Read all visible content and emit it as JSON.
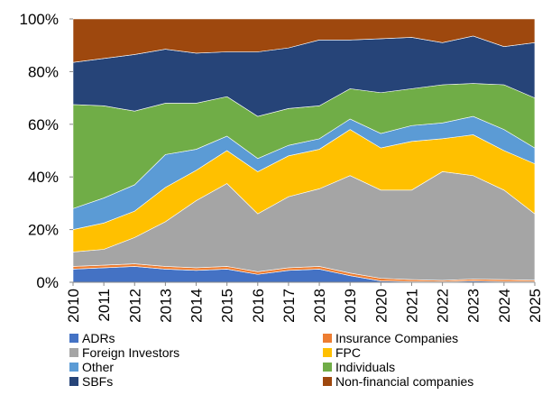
{
  "chart_data": {
    "type": "stacked_area",
    "categories": [
      "2010",
      "2011",
      "2012",
      "2013",
      "2014",
      "2015",
      "2016",
      "2017",
      "2018",
      "2019",
      "2020",
      "2021",
      "2022",
      "2023",
      "2024",
      "2025"
    ],
    "series": [
      {
        "name": "ADRs",
        "color": "#4472c4",
        "values": [
          5,
          5.5,
          6,
          5,
          4.5,
          5,
          3,
          4.5,
          5,
          2.5,
          0.5,
          0.3,
          0.2,
          0.5,
          0.3,
          0.3
        ]
      },
      {
        "name": "Insurance Companies",
        "color": "#ed7d31",
        "values": [
          1,
          1,
          1,
          1,
          1,
          1,
          1,
          1,
          1,
          1,
          1,
          0.7,
          0.5,
          0.7,
          0.7,
          0.5
        ]
      },
      {
        "name": "Foreign Investors",
        "color": "#a5a5a5",
        "values": [
          5.5,
          6,
          10,
          17,
          25.5,
          31.5,
          22,
          27,
          29.5,
          37,
          33.5,
          34,
          41.3,
          39.3,
          34,
          25.2
        ]
      },
      {
        "name": "FPC",
        "color": "#ffc000",
        "values": [
          8.5,
          10,
          10,
          13,
          11.5,
          12.5,
          16,
          15.5,
          15,
          17.5,
          16,
          18.5,
          12.5,
          15.5,
          15,
          19
        ]
      },
      {
        "name": "Other",
        "color": "#5b9bd5",
        "values": [
          8,
          9.5,
          10,
          12.5,
          8,
          5.5,
          5,
          4,
          4,
          4,
          5.5,
          6,
          6,
          7,
          8,
          6
        ]
      },
      {
        "name": "Individuals",
        "color": "#70ad47",
        "values": [
          39.5,
          35,
          28,
          19.5,
          17.5,
          15,
          16,
          14,
          12.5,
          11.5,
          15.5,
          14,
          14.5,
          12.5,
          17,
          19
        ]
      },
      {
        "name": "SBFs",
        "color": "#264478",
        "values": [
          16,
          18,
          21.5,
          20.5,
          19,
          17,
          24.5,
          23,
          25,
          18.5,
          20.5,
          19.5,
          16,
          18,
          14.5,
          21
        ]
      },
      {
        "name": "Non-financial companies",
        "color": "#9e480e",
        "values": [
          16.5,
          15,
          13.5,
          11.5,
          13,
          12.5,
          12.5,
          11,
          8,
          8,
          7.5,
          7,
          9,
          6.5,
          10.5,
          9
        ]
      }
    ],
    "ylim": [
      0,
      100
    ],
    "yticks": [
      {
        "value": 0,
        "label": "0%"
      },
      {
        "value": 20,
        "label": "20%"
      },
      {
        "value": 40,
        "label": "40%"
      },
      {
        "value": 60,
        "label": "60%"
      },
      {
        "value": 80,
        "label": "80%"
      },
      {
        "value": 100,
        "label": "100%"
      }
    ]
  }
}
